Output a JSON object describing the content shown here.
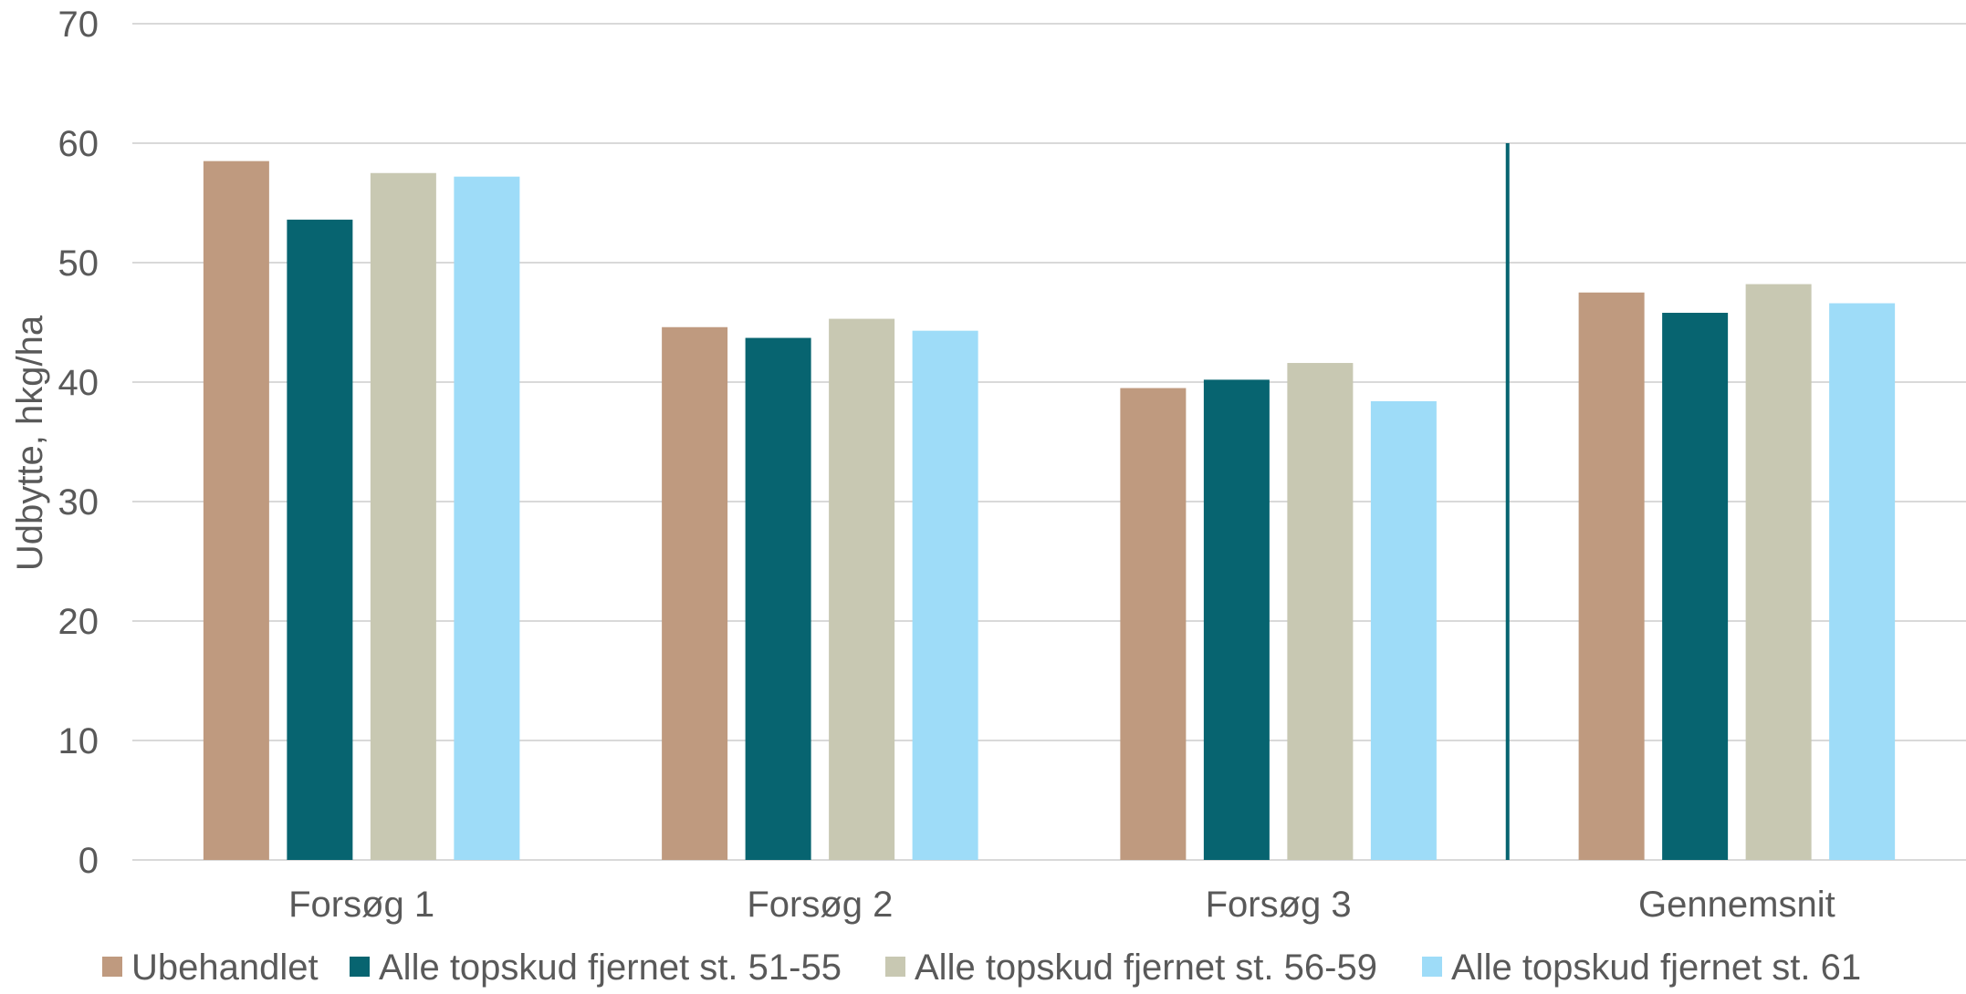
{
  "chart_data": {
    "type": "bar",
    "categories": [
      "Forsøg 1",
      "Forsøg 2",
      "Forsøg 3",
      "Gennemsnit"
    ],
    "series": [
      {
        "name": "Ubehandlet",
        "color": "#BF9A7F",
        "values": [
          58.5,
          44.6,
          39.5,
          47.5
        ]
      },
      {
        "name": "Alle topskud fjernet st. 51-55",
        "color": "#076470",
        "values": [
          53.6,
          43.7,
          40.2,
          45.8
        ]
      },
      {
        "name": "Alle topskud fjernet st. 56-59",
        "color": "#C8C8B2",
        "values": [
          57.5,
          45.3,
          41.6,
          48.2
        ]
      },
      {
        "name": "Alle topskud fjernet st. 61",
        "color": "#9EDCF8",
        "values": [
          57.2,
          44.3,
          38.4,
          46.6
        ]
      }
    ],
    "ylabel": "Udbytte, hkg/ha",
    "ylim": [
      0,
      70
    ],
    "yticks": [
      0,
      10,
      20,
      30,
      40,
      50,
      60,
      70
    ],
    "grid": true,
    "legend": "bottom",
    "separator_line": {
      "between_categories": [
        2,
        3
      ],
      "color": "#076470",
      "y_top": 60
    }
  }
}
